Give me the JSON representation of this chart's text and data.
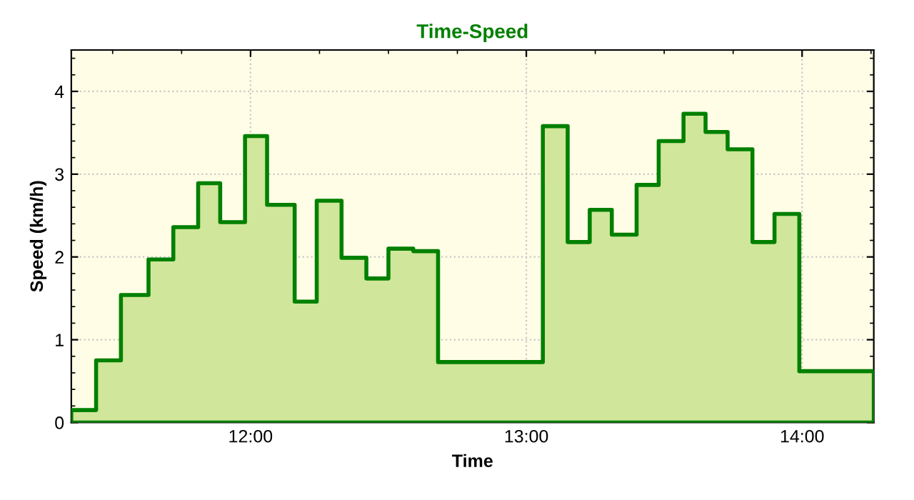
{
  "chart_data": {
    "type": "area",
    "title": "Time-Speed",
    "xlabel": "Time",
    "ylabel": "Speed (km/h)",
    "x": [
      11.35,
      11.44,
      11.53,
      11.63,
      11.72,
      11.81,
      11.89,
      11.98,
      12.06,
      12.16,
      12.24,
      12.33,
      12.42,
      12.5,
      12.59,
      12.68,
      13.06,
      13.15,
      13.23,
      13.31,
      13.4,
      13.48,
      13.57,
      13.65,
      13.73,
      13.82,
      13.9,
      13.99,
      14.26
    ],
    "series": [
      {
        "color": "#008000",
        "values": [
          0.15,
          0.75,
          1.54,
          1.97,
          2.36,
          2.89,
          2.42,
          3.46,
          2.63,
          1.46,
          2.68,
          1.99,
          1.74,
          2.1,
          2.07,
          0.73,
          3.58,
          2.18,
          2.57,
          2.27,
          2.87,
          3.4,
          3.73,
          3.51,
          3.3,
          2.18,
          2.52,
          0.62,
          0.62
        ]
      }
    ],
    "xlim": [
      11.35,
      14.26
    ],
    "ylim": [
      0,
      4.5
    ],
    "xticks": [
      {
        "value": 12,
        "label": "12:00"
      },
      {
        "value": 13,
        "label": "13:00"
      },
      {
        "value": 14,
        "label": "14:00"
      }
    ],
    "yticks": [
      0,
      1,
      2,
      3,
      4
    ],
    "grid": true,
    "line_style": "solid"
  }
}
